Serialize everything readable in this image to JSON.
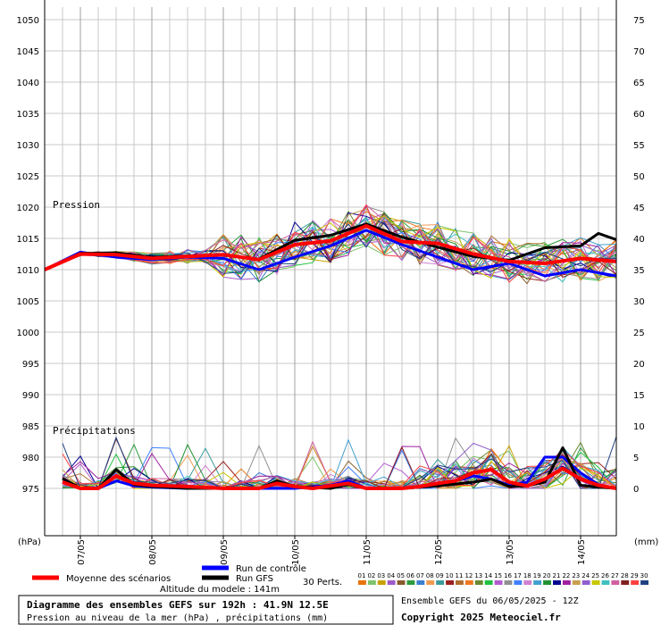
{
  "chart_data": {
    "type": "line",
    "ylabel_left": "(hPa)",
    "ylabel_right": "(mm)",
    "pressure_axis": {
      "min": 975,
      "max": 1050,
      "ticks": [
        975,
        980,
        985,
        990,
        995,
        1000,
        1005,
        1010,
        1015,
        1020,
        1025,
        1030,
        1035,
        1040,
        1045,
        1050
      ]
    },
    "precip_axis": {
      "min": 0,
      "max": 75,
      "ticks": [
        0,
        5,
        10,
        15,
        20,
        25,
        30,
        35,
        40,
        45,
        50,
        55,
        60,
        65,
        70,
        75
      ]
    },
    "x_range": [
      0,
      32
    ],
    "x_ticks": [
      {
        "x": 2,
        "label": "07/05"
      },
      {
        "x": 6,
        "label": "08/05"
      },
      {
        "x": 10,
        "label": "09/05"
      },
      {
        "x": 14,
        "label": "10/05"
      },
      {
        "x": 18,
        "label": "11/05"
      },
      {
        "x": 22,
        "label": "12/05"
      },
      {
        "x": 26,
        "label": "13/05"
      },
      {
        "x": 30,
        "label": "14/05"
      }
    ],
    "section_labels": {
      "pressure": "Pression",
      "precipitation": "Précipitations"
    },
    "series": [
      {
        "name": "Moyenne des scénarios",
        "color": "#ff0000",
        "pressure": [
          [
            0,
            1010
          ],
          [
            2,
            1012.5
          ],
          [
            4,
            1012.4
          ],
          [
            6,
            1011.8
          ],
          [
            8,
            1012.1
          ],
          [
            10,
            1012.4
          ],
          [
            12,
            1011.6
          ],
          [
            14,
            1014
          ],
          [
            16,
            1014.6
          ],
          [
            18,
            1017
          ],
          [
            20,
            1014.5
          ],
          [
            22,
            1014.2
          ],
          [
            24,
            1012.5
          ],
          [
            26,
            1011.3
          ],
          [
            28,
            1011
          ],
          [
            30,
            1011.8
          ],
          [
            32,
            1011.3
          ]
        ],
        "precip": [
          [
            1,
            1
          ],
          [
            2,
            0
          ],
          [
            3,
            0
          ],
          [
            4,
            2
          ],
          [
            5,
            0.8
          ],
          [
            6,
            0.5
          ],
          [
            8,
            0.3
          ],
          [
            10,
            0
          ],
          [
            12,
            0
          ],
          [
            13,
            0.8
          ],
          [
            14,
            0.3
          ],
          [
            15,
            0
          ],
          [
            17,
            0.8
          ],
          [
            18,
            0
          ],
          [
            19,
            0
          ],
          [
            20,
            0
          ],
          [
            21,
            0.3
          ],
          [
            22,
            0.8
          ],
          [
            23,
            1.2
          ],
          [
            24,
            2.5
          ],
          [
            25,
            3
          ],
          [
            26,
            1
          ],
          [
            27,
            0.4
          ],
          [
            28,
            1.5
          ],
          [
            29,
            3.2
          ],
          [
            30,
            1.5
          ],
          [
            31,
            0.5
          ],
          [
            32,
            0
          ]
        ]
      },
      {
        "name": "Run de contrôle",
        "color": "#0000ff",
        "pressure": [
          [
            0,
            1010
          ],
          [
            2,
            1012.8
          ],
          [
            4,
            1012
          ],
          [
            6,
            1011.6
          ],
          [
            8,
            1012
          ],
          [
            10,
            1011.8
          ],
          [
            12,
            1010
          ],
          [
            14,
            1012
          ],
          [
            16,
            1013.8
          ],
          [
            18,
            1016.3
          ],
          [
            20,
            1014
          ],
          [
            22,
            1012
          ],
          [
            24,
            1010
          ],
          [
            26,
            1011
          ],
          [
            28,
            1009
          ],
          [
            30,
            1010
          ],
          [
            32,
            1009
          ]
        ],
        "precip": [
          [
            1,
            1
          ],
          [
            2,
            0
          ],
          [
            3,
            0
          ],
          [
            4,
            1.2
          ],
          [
            5,
            0.4
          ],
          [
            6,
            0.2
          ],
          [
            8,
            0
          ],
          [
            10,
            0
          ],
          [
            12,
            0
          ],
          [
            14,
            0
          ],
          [
            16,
            0.5
          ],
          [
            17,
            1.2
          ],
          [
            18,
            0
          ],
          [
            19,
            0
          ],
          [
            20,
            0
          ],
          [
            22,
            0.4
          ],
          [
            24,
            2
          ],
          [
            25,
            1.5
          ],
          [
            26,
            0.5
          ],
          [
            27,
            1
          ],
          [
            28,
            5
          ],
          [
            29,
            5
          ],
          [
            30,
            2.5
          ],
          [
            31,
            0.6
          ],
          [
            32,
            0
          ]
        ]
      },
      {
        "name": "Run GFS",
        "color": "#000000",
        "pressure": [
          [
            0,
            1010
          ],
          [
            2,
            1012.6
          ],
          [
            4,
            1012.7
          ],
          [
            6,
            1012
          ],
          [
            8,
            1012.2
          ],
          [
            10,
            1012.3
          ],
          [
            12,
            1011.7
          ],
          [
            14,
            1014.7
          ],
          [
            16,
            1015.5
          ],
          [
            18,
            1017.3
          ],
          [
            20,
            1015.2
          ],
          [
            22,
            1013.6
          ],
          [
            24,
            1012.1
          ],
          [
            26,
            1011.5
          ],
          [
            28,
            1013.5
          ],
          [
            30,
            1013.8
          ],
          [
            31,
            1015.8
          ],
          [
            32,
            1014.8
          ]
        ],
        "precip": [
          [
            1,
            1.6
          ],
          [
            2,
            0
          ],
          [
            3,
            0
          ],
          [
            4,
            3
          ],
          [
            5,
            0.6
          ],
          [
            6,
            0.3
          ],
          [
            8,
            0
          ],
          [
            10,
            0
          ],
          [
            12,
            0
          ],
          [
            13,
            1.2
          ],
          [
            14,
            0.3
          ],
          [
            16,
            0
          ],
          [
            17,
            0.6
          ],
          [
            18,
            0
          ],
          [
            20,
            0
          ],
          [
            22,
            0.4
          ],
          [
            24,
            1
          ],
          [
            25,
            1.5
          ],
          [
            26,
            0.3
          ],
          [
            27,
            0.4
          ],
          [
            28,
            1
          ],
          [
            29,
            6.5
          ],
          [
            30,
            0.5
          ],
          [
            31,
            0.2
          ],
          [
            32,
            0
          ]
        ]
      }
    ],
    "perturbations": {
      "label": "30 Perts.",
      "count": 30,
      "ids": [
        "01",
        "02",
        "03",
        "04",
        "05",
        "06",
        "07",
        "08",
        "09",
        "10",
        "11",
        "12",
        "13",
        "14",
        "15",
        "16",
        "17",
        "18",
        "19",
        "20",
        "21",
        "22",
        "23",
        "24",
        "25",
        "26",
        "27",
        "28",
        "29",
        "30"
      ],
      "colors": [
        "#e8740c",
        "#7dc36b",
        "#c8a000",
        "#a05ac8",
        "#8a5a2a",
        "#2f9b3d",
        "#3a7fd0",
        "#f09a50",
        "#3a9b9b",
        "#9a2020",
        "#b07030",
        "#f07820",
        "#6a8a30",
        "#20c040",
        "#b45ad0",
        "#909090",
        "#4080ff",
        "#d080d0",
        "#40a0d0",
        "#209030",
        "#000090",
        "#a020a0",
        "#c8a050",
        "#9060d0",
        "#c8c800",
        "#40c0c0",
        "#d060a0",
        "#802020",
        "#ff4040",
        "#204080"
      ]
    }
  },
  "legend": {
    "mean_label": "Moyenne des scénarios",
    "control_label": "Run de contrôle",
    "gfs_label": "Run GFS",
    "perts_label": "30 Perts.",
    "altitude": "Altitude du modele : 141m"
  },
  "footer": {
    "title": "Diagramme des ensembles GEFS sur 192h : 41.9N 12.5E",
    "subtitle": "Pression au niveau de la mer (hPa) , précipitations (mm)",
    "run_info": "Ensemble GEFS du 06/05/2025 - 12Z",
    "copyright": "Copyright 2025 Meteociel.fr"
  },
  "colors": {
    "mean": "#ff0000",
    "control": "#0000ff",
    "gfs": "#000000",
    "grid": "#c0c0c0"
  }
}
